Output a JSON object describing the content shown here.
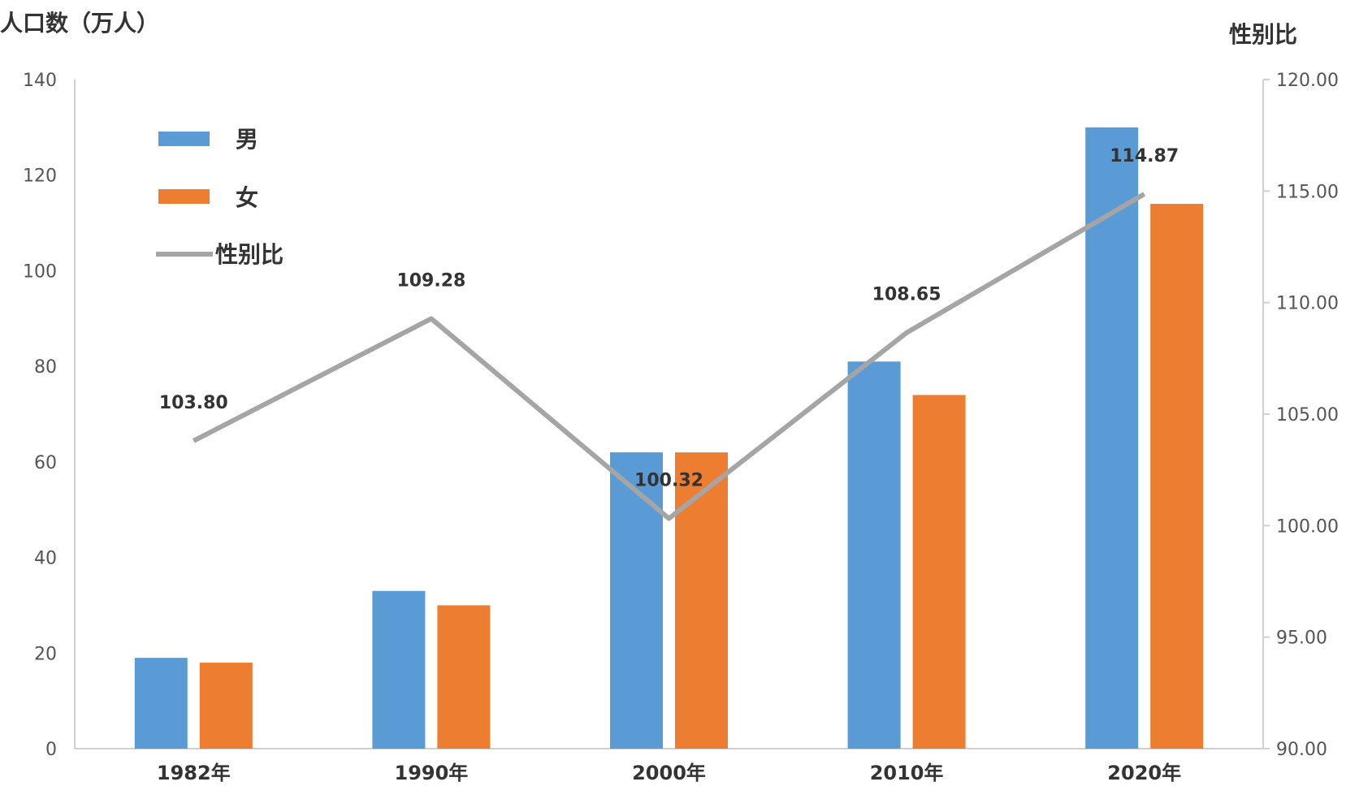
{
  "chart_data": {
    "type": "bar",
    "categories": [
      "1982年",
      "1990年",
      "2000年",
      "2010年",
      "2020年"
    ],
    "ylabel": "人口数（万人）",
    "y2label": "性别比",
    "ylim": [
      0,
      140
    ],
    "yticks": [
      "0",
      "20",
      "40",
      "60",
      "80",
      "100",
      "120",
      "140"
    ],
    "y2lim": [
      90,
      120
    ],
    "y2ticks": [
      "90.00",
      "95.00",
      "100.00",
      "105.00",
      "110.00",
      "115.00",
      "120.00"
    ],
    "grid": false,
    "legend_position": "top-left",
    "series": [
      {
        "name": "男",
        "type": "bar",
        "axis": "left",
        "color": "#5B9BD5",
        "values": [
          19,
          33,
          62,
          81,
          130
        ]
      },
      {
        "name": "女",
        "type": "bar",
        "axis": "left",
        "color": "#ED7D31",
        "values": [
          18,
          30,
          62,
          74,
          114
        ]
      },
      {
        "name": "性别比",
        "type": "line",
        "axis": "right",
        "color": "#A5A5A5",
        "values": [
          103.8,
          109.28,
          100.32,
          108.65,
          114.87
        ],
        "labels": [
          "103.80",
          "109.28",
          "100.32",
          "108.65",
          "114.87"
        ]
      }
    ]
  }
}
